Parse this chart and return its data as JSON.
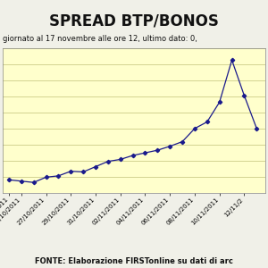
{
  "title": "SPREAD BTP/BONOS",
  "subtitle": "giornato al 17 novembre alle ore 12, ultimo dato: 0,",
  "footnote": "FONTE: Elaborazione FIRSTonline su dati di arc",
  "background_color": "#ffffcc",
  "outer_bg": "#f0f0e8",
  "line_color": "#1a1a8c",
  "marker_color": "#1a1a8c",
  "values": [
    310,
    308,
    306,
    314,
    316,
    323,
    322,
    330,
    338,
    341,
    347,
    351,
    355,
    361,
    368,
    388,
    398,
    428,
    492,
    438,
    388
  ],
  "x_tick_labels": [
    "/2011",
    "25/10/2011",
    "27/10/2011",
    "29/10/2011",
    "31/10/2011",
    "02/11/2011",
    "04/11/2011",
    "06/11/2011",
    "08/11/2011",
    "10/11/2011",
    "12/11/2"
  ],
  "x_tick_indices": [
    0,
    1,
    3,
    5,
    7,
    9,
    11,
    13,
    15,
    17,
    19
  ],
  "ylim": [
    290,
    510
  ],
  "num_hlines": 9,
  "grid_color": "#cccc88",
  "title_fontsize": 12,
  "subtitle_fontsize": 6,
  "footnote_fontsize": 6,
  "tick_fontsize": 5
}
